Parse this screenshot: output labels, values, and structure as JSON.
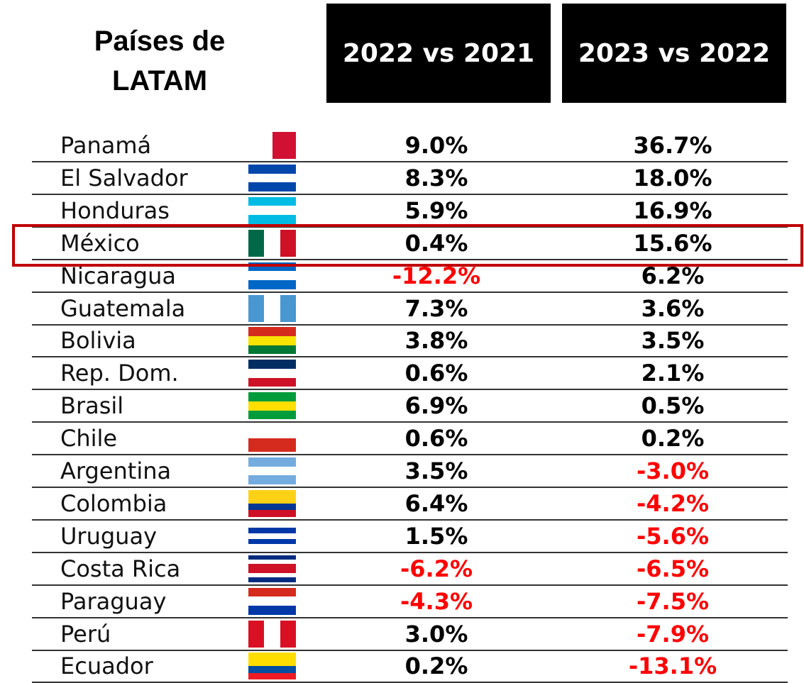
{
  "header": {
    "title_lines": [
      "Países de",
      "LATAM"
    ],
    "columns": [
      "2022 vs 2021",
      "2023 vs 2022"
    ]
  },
  "table": {
    "rows": [
      [
        "Panamá",
        "9.0%",
        "36.7%"
      ],
      [
        "El Salvador",
        "8.3%",
        "18.0%"
      ],
      [
        "Honduras",
        "5.9%",
        "16.9%"
      ],
      [
        "México",
        "0.4%",
        "15.6%"
      ],
      [
        "Nicaragua",
        "-12.2%",
        "6.2%"
      ],
      [
        "Guatemala",
        "7.3%",
        "3.6%"
      ],
      [
        "Bolivia",
        "3.8%",
        "3.5%"
      ],
      [
        "Rep. Dom.",
        "0.6%",
        "2.1%"
      ],
      [
        "Brasil",
        "6.9%",
        "0.5%"
      ],
      [
        "Chile",
        "0.6%",
        "0.2%"
      ],
      [
        "Argentina",
        "3.5%",
        "-3.0%"
      ],
      [
        "Colombia",
        "6.4%",
        "-4.2%"
      ],
      [
        "Uruguay",
        "1.5%",
        "-5.6%"
      ],
      [
        "Costa Rica",
        "-6.2%",
        "-6.5%"
      ],
      [
        "Paraguay",
        "-4.3%",
        "-7.5%"
      ],
      [
        "Perú",
        "3.0%",
        "-7.9%"
      ],
      [
        "Ecuador",
        "0.2%",
        "-13.1%"
      ]
    ],
    "highlight_row": 3
  }
}
